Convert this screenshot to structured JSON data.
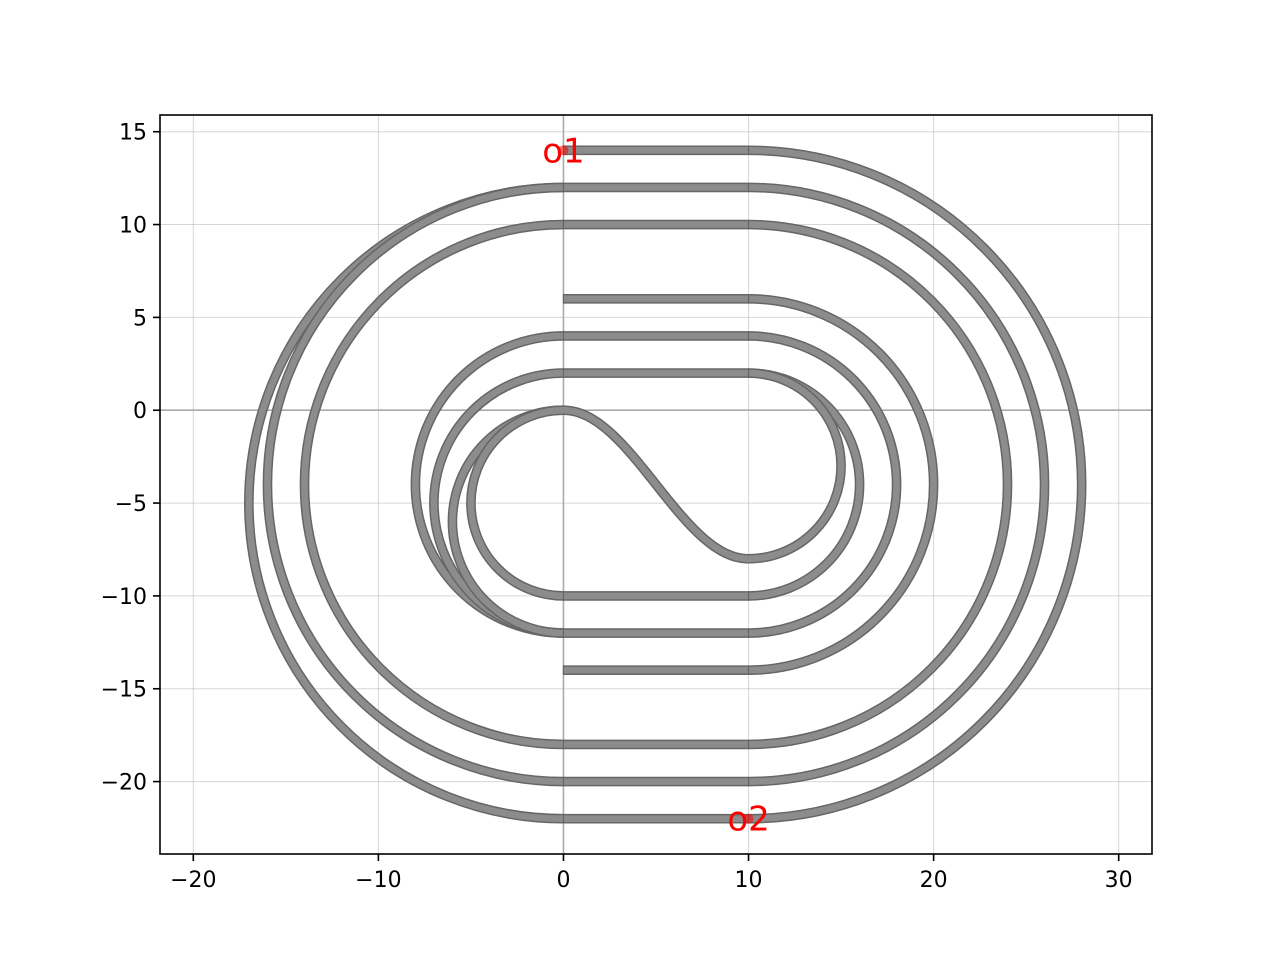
{
  "chart_data": {
    "type": "line",
    "title": "",
    "xlabel": "",
    "ylabel": "",
    "xlim": [
      -21.8,
      31.8
    ],
    "ylim": [
      -23.9,
      15.9
    ],
    "grid": true,
    "aspect": "equal",
    "x_ticks": [
      -20,
      -10,
      0,
      10,
      20,
      30
    ],
    "x_tick_labels": [
      "−20",
      "−10",
      "0",
      "10",
      "20",
      "30"
    ],
    "y_ticks": [
      15,
      10,
      5,
      0,
      -5,
      -10,
      -15,
      -20
    ],
    "y_tick_labels": [
      "15",
      "10",
      "5",
      "0",
      "−5",
      "−10",
      "−15",
      "−20"
    ],
    "waveguide_color": "#8c8c8c",
    "waveguide_edge_color": "#666666",
    "zero_line_color": "#aaaaaa",
    "port_color": "#ff0000",
    "spiral_segments": [
      {
        "kind": "straight",
        "from": [
          0,
          14
        ],
        "to": [
          10,
          14
        ]
      },
      {
        "kind": "arc",
        "center": [
          10,
          -4
        ],
        "radius": 18,
        "side": "right"
      },
      {
        "kind": "straight",
        "from": [
          10,
          -22
        ],
        "to": [
          0,
          -22
        ]
      },
      {
        "kind": "straight",
        "from": [
          0,
          12
        ],
        "to": [
          10,
          12
        ]
      },
      {
        "kind": "arc",
        "center": [
          10,
          -4
        ],
        "radius": 16,
        "side": "right"
      },
      {
        "kind": "straight",
        "from": [
          10,
          -20
        ],
        "to": [
          0,
          -20
        ]
      },
      {
        "kind": "straight",
        "from": [
          0,
          10
        ],
        "to": [
          10,
          10
        ]
      },
      {
        "kind": "arc",
        "center": [
          10,
          -4
        ],
        "radius": 14,
        "side": "right"
      },
      {
        "kind": "straight",
        "from": [
          10,
          -18
        ],
        "to": [
          0,
          -18
        ]
      },
      {
        "kind": "arc",
        "center": [
          0,
          -5
        ],
        "radius": 17,
        "side": "left"
      },
      {
        "kind": "arc",
        "center": [
          0,
          -4
        ],
        "radius": 16,
        "side": "left"
      },
      {
        "kind": "arc",
        "center": [
          0,
          -4
        ],
        "radius": 14,
        "side": "left"
      },
      {
        "kind": "straight",
        "from": [
          0,
          6
        ],
        "to": [
          10,
          6
        ]
      },
      {
        "kind": "arc",
        "center": [
          10,
          -4
        ],
        "radius": 10,
        "side": "right"
      },
      {
        "kind": "straight",
        "from": [
          10,
          -14
        ],
        "to": [
          0,
          -14
        ]
      },
      {
        "kind": "straight",
        "from": [
          0,
          4
        ],
        "to": [
          10,
          4
        ]
      },
      {
        "kind": "arc",
        "center": [
          10,
          -4
        ],
        "radius": 8,
        "side": "right"
      },
      {
        "kind": "straight",
        "from": [
          10,
          -12
        ],
        "to": [
          0,
          -12
        ]
      },
      {
        "kind": "straight",
        "from": [
          0,
          2
        ],
        "to": [
          10,
          2
        ]
      },
      {
        "kind": "arc",
        "center": [
          10,
          -4
        ],
        "radius": 6,
        "side": "right"
      },
      {
        "kind": "straight",
        "from": [
          10,
          -10
        ],
        "to": [
          0,
          -10
        ]
      },
      {
        "kind": "arc",
        "center": [
          0,
          -4
        ],
        "radius": 8,
        "side": "left"
      },
      {
        "kind": "arc",
        "center": [
          0,
          -5
        ],
        "radius": 7,
        "side": "left"
      },
      {
        "kind": "arc",
        "center": [
          0,
          -6
        ],
        "radius": 6,
        "side": "left"
      },
      {
        "kind": "arc",
        "center": [
          0,
          -5
        ],
        "radius": 5,
        "side": "left"
      },
      {
        "kind": "arc",
        "center": [
          10,
          -3
        ],
        "radius": 5,
        "side": "right"
      },
      {
        "kind": "s-bend",
        "from": [
          0,
          0
        ],
        "to": [
          10,
          -8
        ]
      }
    ],
    "ports": [
      {
        "name": "o1",
        "x": 0,
        "y": 14
      },
      {
        "name": "o2",
        "x": 10,
        "y": -22
      }
    ]
  }
}
